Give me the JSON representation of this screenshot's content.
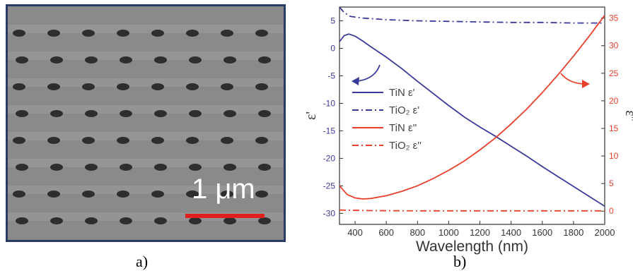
{
  "panel_a": {
    "label": "a)",
    "scale_bar_text": "1 μm",
    "colors": {
      "background": "#8a8a8a",
      "frame": "#2a3a66",
      "dots": "#2e2e2e",
      "scale_bar": "#e0201c"
    }
  },
  "panel_b": {
    "label": "b)"
  },
  "chart_data": {
    "type": "line",
    "xlabel": "Wavelength (nm)",
    "ylabel_left": "ε'",
    "ylabel_right": "ε''",
    "xlim": [
      300,
      2000
    ],
    "ylim_left": [
      -32,
      7.5
    ],
    "ylim_right": [
      -2.4,
      37
    ],
    "x_ticks": [
      400,
      600,
      800,
      1000,
      1200,
      1400,
      1600,
      1800,
      2000
    ],
    "y_ticks_left": [
      5,
      0,
      -5,
      -10,
      -15,
      -20,
      -25,
      -30
    ],
    "y_ticks_right": [
      35,
      30,
      25,
      20,
      15,
      10,
      5,
      0
    ],
    "grid": false,
    "legend_position": "center-left",
    "colors": {
      "blue": "#3a3a9a",
      "red": "#e8402a",
      "axis": "#333333"
    },
    "series": [
      {
        "name": "TiN ε'",
        "axis": "left",
        "style": "solid",
        "x": [
          300,
          330,
          360,
          400,
          450,
          500,
          600,
          700,
          800,
          900,
          1000,
          1100,
          1200,
          1300,
          1400,
          1500,
          1600,
          1700,
          1800,
          1900,
          2000
        ],
        "values": [
          1.2,
          2.3,
          2.6,
          2.2,
          1.3,
          0.3,
          -1.6,
          -3.7,
          -6.0,
          -8.2,
          -10.4,
          -12.5,
          -14.3,
          -16.0,
          -17.8,
          -19.6,
          -21.5,
          -23.3,
          -25.1,
          -26.9,
          -28.7
        ]
      },
      {
        "name": "TiO2 ε'",
        "axis": "left",
        "style": "dashdot",
        "x": [
          300,
          330,
          370,
          450,
          600,
          800,
          1000,
          1200,
          1400,
          1600,
          1800,
          2000
        ],
        "values": [
          7.5,
          6.5,
          5.8,
          5.5,
          5.2,
          5.0,
          4.9,
          4.8,
          4.7,
          4.7,
          4.6,
          4.6
        ]
      },
      {
        "name": "TiN ε''",
        "axis": "right",
        "style": "solid",
        "x": [
          300,
          350,
          400,
          450,
          500,
          600,
          700,
          800,
          900,
          1000,
          1100,
          1200,
          1300,
          1400,
          1500,
          1600,
          1700,
          1800,
          1900,
          2000
        ],
        "values": [
          4.6,
          3.0,
          2.4,
          2.2,
          2.3,
          2.8,
          3.6,
          4.6,
          5.9,
          7.4,
          9.1,
          11.1,
          13.3,
          15.8,
          18.5,
          21.5,
          24.7,
          28.1,
          31.7,
          35.5
        ]
      },
      {
        "name": "TiO2 ε''",
        "axis": "right",
        "style": "dashdot",
        "x": [
          300,
          500,
          800,
          1200,
          1600,
          2000
        ],
        "values": [
          0.2,
          0.1,
          0.05,
          0.05,
          0.05,
          0.05
        ]
      }
    ],
    "legend": [
      {
        "text": "TiN ε'",
        "color": "#3a3a9a",
        "style": "solid"
      },
      {
        "text": "TiO₂ ε'",
        "color": "#3a3a9a",
        "style": "dashdot"
      },
      {
        "text": "TiN ε''",
        "color": "#e8402a",
        "style": "solid"
      },
      {
        "text": "TiO₂ ε''",
        "color": "#e8402a",
        "style": "dashdot"
      }
    ],
    "annotations": [
      {
        "name": "left-axis-arrow",
        "color": "#3a3a9a",
        "points_to": "left"
      },
      {
        "name": "right-axis-arrow",
        "color": "#e8402a",
        "points_to": "right"
      }
    ]
  }
}
